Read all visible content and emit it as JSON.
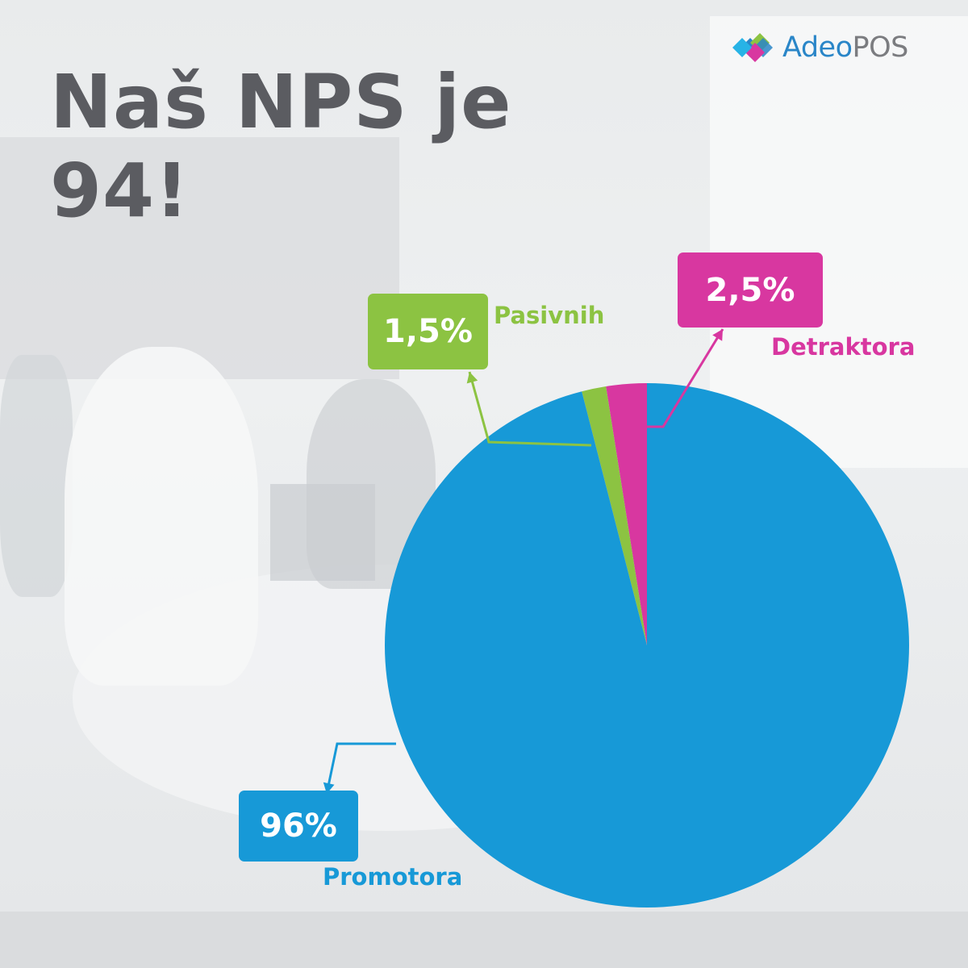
{
  "headline": "Naš NPS je 94!",
  "logo": {
    "text_primary": "Adeo",
    "text_secondary": "POS"
  },
  "colors": {
    "promotors": "#1799d7",
    "passives": "#8cc342",
    "detractors": "#d837a0",
    "headline": "#5b5c61",
    "logo_blue": "#2a86c8",
    "logo_grey": "#7b7c80"
  },
  "chart_data": {
    "type": "pie",
    "title": "Naš NPS je 94!",
    "start_angle": "12 o'clock, clockwise",
    "slices": [
      {
        "key": "promotors",
        "label": "Promotora",
        "value": 96,
        "display": "96%"
      },
      {
        "key": "passives",
        "label": "Pasivnih",
        "value": 1.5,
        "display": "1,5%"
      },
      {
        "key": "detractors",
        "label": "Detraktora",
        "value": 2.5,
        "display": "2,5%"
      }
    ]
  }
}
